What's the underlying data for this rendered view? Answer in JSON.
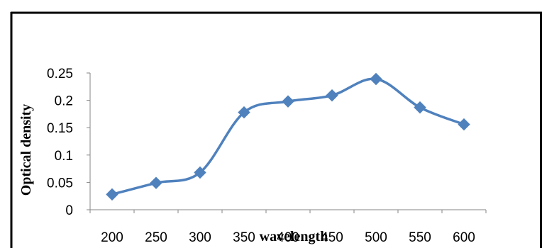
{
  "chart_data": {
    "type": "line",
    "title": "",
    "xlabel": "wavelength",
    "ylabel": "Optical  density",
    "categories": [
      "200",
      "250",
      "300",
      "350",
      "400",
      "450",
      "500",
      "550",
      "600"
    ],
    "x_tick_labels": [
      "200",
      "250",
      "300",
      "350",
      "400",
      "450",
      "500",
      "550",
      "600"
    ],
    "y_tick_labels": [
      "0",
      "0.05",
      "0.1",
      "0.15",
      "0.2",
      "0.25"
    ],
    "ylim": [
      0,
      0.25
    ],
    "grid": false,
    "legend": "none",
    "marker": "diamond",
    "smooth": true,
    "series": [
      {
        "values": [
          0.028,
          0.049,
          0.068,
          0.178,
          0.198,
          0.209,
          0.239,
          0.187,
          0.156
        ],
        "color": "#4f81bd"
      }
    ]
  }
}
